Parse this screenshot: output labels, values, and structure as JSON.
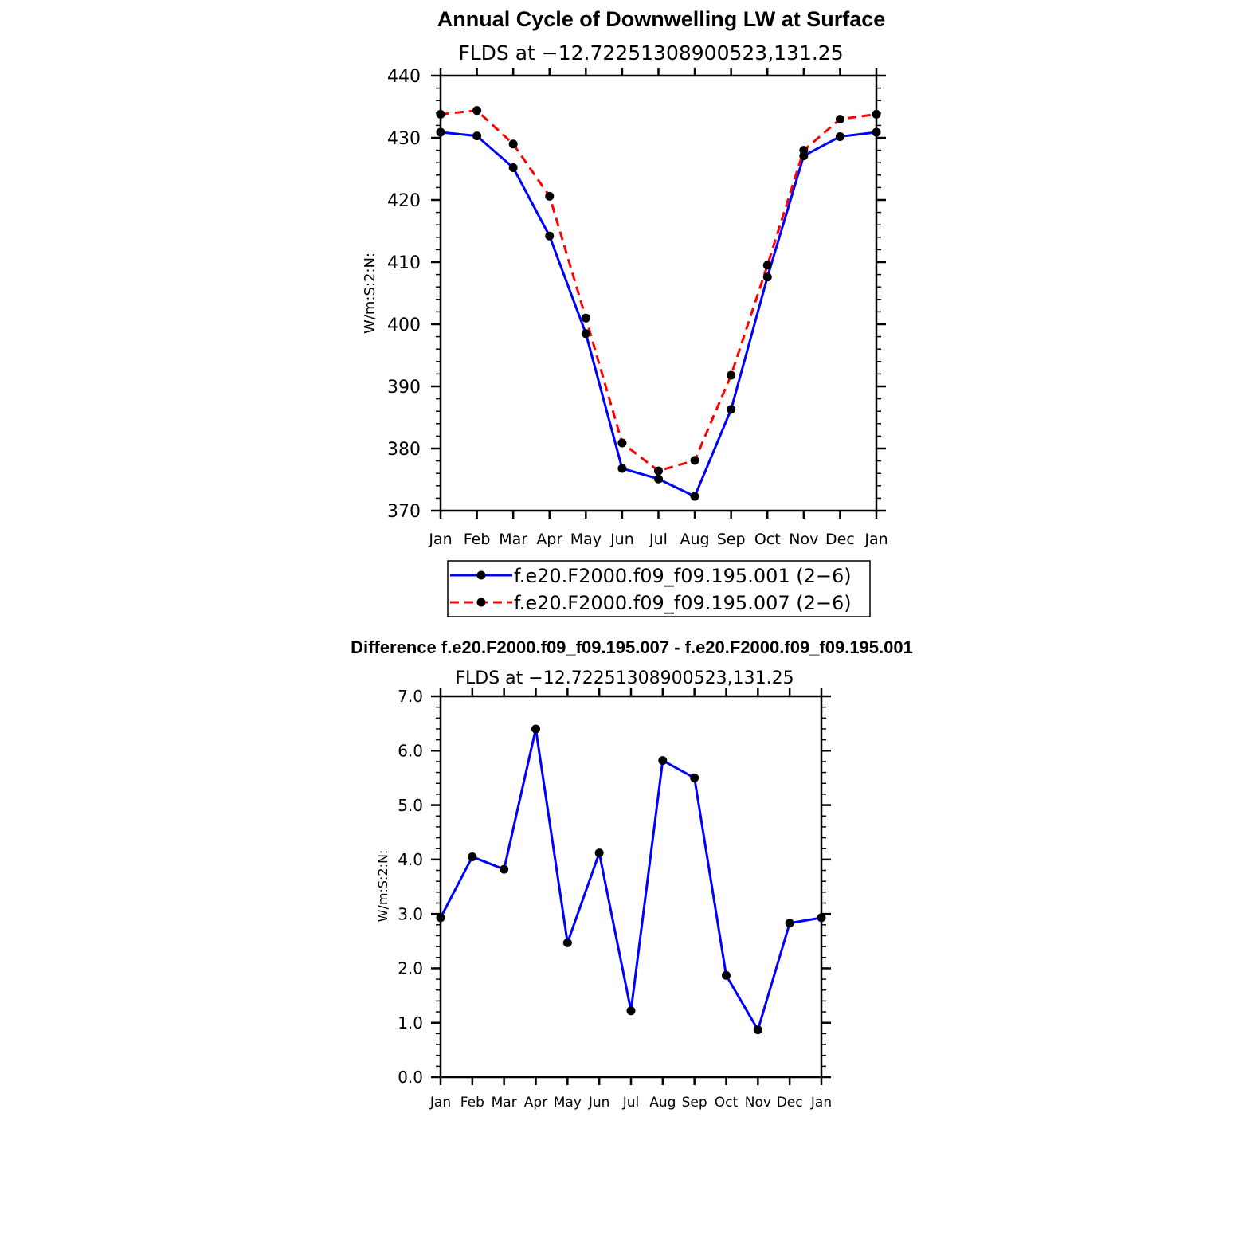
{
  "chart_data": [
    {
      "type": "line",
      "title": "Annual Cycle of Downwelling LW at Surface",
      "subtitle": "FLDS at −12.72251308900523,131.25",
      "xlabel": "",
      "ylabel": "W/m:S:2:N:",
      "categories": [
        "Jan",
        "Feb",
        "Mar",
        "Apr",
        "May",
        "Jun",
        "Jul",
        "Aug",
        "Sep",
        "Oct",
        "Nov",
        "Dec",
        "Jan"
      ],
      "ylim": [
        370,
        440
      ],
      "yticks": [
        "370",
        "380",
        "390",
        "400",
        "410",
        "420",
        "430",
        "440"
      ],
      "legend_position": "bottom",
      "series": [
        {
          "name": "f.e20.F2000.f09_f09.195.001 (2−6)",
          "color": "#0000ff",
          "dash": "solid",
          "values": [
            430.9,
            430.3,
            425.2,
            414.2,
            398.5,
            376.8,
            375.1,
            372.3,
            386.3,
            407.6,
            427.1,
            430.2,
            430.9
          ]
        },
        {
          "name": "f.e20.F2000.f09_f09.195.007 (2−6)",
          "color": "#ff0000",
          "dash": "dashed",
          "values": [
            433.8,
            434.4,
            429.0,
            420.6,
            401.0,
            380.9,
            376.4,
            378.1,
            391.8,
            409.5,
            428.0,
            433.0,
            433.8
          ]
        }
      ]
    },
    {
      "type": "line",
      "title": "Difference f.e20.F2000.f09_f09.195.007 - f.e20.F2000.f09_f09.195.001",
      "subtitle": "FLDS at −12.72251308900523,131.25",
      "xlabel": "",
      "ylabel": "W/m:S:2:N:",
      "categories": [
        "Jan",
        "Feb",
        "Mar",
        "Apr",
        "May",
        "Jun",
        "Jul",
        "Aug",
        "Sep",
        "Oct",
        "Nov",
        "Dec",
        "Jan"
      ],
      "ylim": [
        0,
        7
      ],
      "yticks": [
        "0.0",
        "1.0",
        "2.0",
        "3.0",
        "4.0",
        "5.0",
        "6.0",
        "7.0"
      ],
      "series": [
        {
          "name": "difference",
          "color": "#0000ff",
          "dash": "solid",
          "values": [
            2.93,
            4.05,
            3.82,
            6.4,
            2.47,
            4.12,
            1.22,
            5.82,
            5.5,
            1.87,
            0.87,
            2.83,
            2.93
          ]
        }
      ]
    }
  ]
}
